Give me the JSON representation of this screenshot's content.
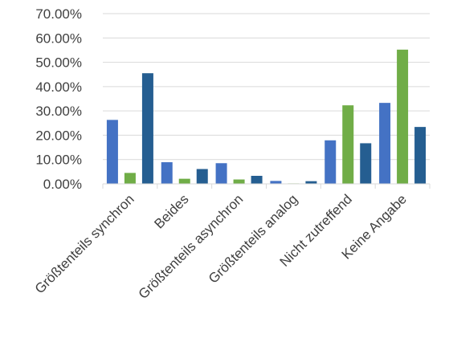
{
  "chart_data": {
    "type": "bar",
    "categories": [
      "Größtenteils synchron",
      "Beides",
      "Größtenteils asynchron",
      "Größtenteils analog",
      "Nicht zutreffend",
      "Keine Angabe"
    ],
    "series": [
      {
        "color": "#4472C4",
        "values": [
          26.3,
          8.9,
          8.5,
          1.2,
          17.9,
          33.3
        ]
      },
      {
        "color": "#70AD47",
        "values": [
          4.5,
          2.1,
          1.8,
          0.2,
          32.3,
          55.2
        ]
      },
      {
        "color": "#255E91",
        "values": [
          45.5,
          6.1,
          3.3,
          1.1,
          16.7,
          23.4
        ]
      }
    ],
    "yticks": [
      "0.00%",
      "10.00%",
      "20.00%",
      "30.00%",
      "40.00%",
      "50.00%",
      "60.00%",
      "70.00%"
    ],
    "ylim": [
      0,
      70
    ],
    "grid": true,
    "legend": "none",
    "title": "",
    "xlabel": "",
    "ylabel": ""
  }
}
